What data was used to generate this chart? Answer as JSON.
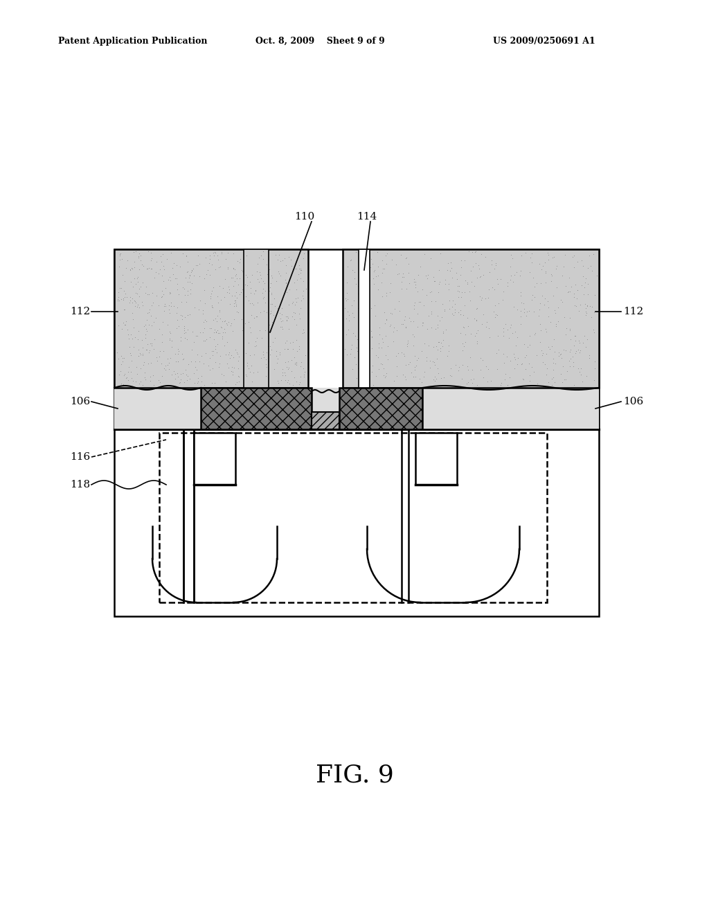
{
  "bg_color": "#ffffff",
  "title": "FIG. 9",
  "header_left": "Patent Application Publication",
  "header_center": "Oct. 8, 2009    Sheet 9 of 9",
  "header_right": "US 2009/0250691 A1",
  "fig_width": 10.24,
  "fig_height": 13.2,
  "dpi": 100,
  "stipple_color": "#c8c8c8",
  "stipple_dot_color": "#888888",
  "hatch_face_color": "#888888",
  "line_color": "#000000",
  "label_fontsize": 11,
  "title_fontsize": 26
}
